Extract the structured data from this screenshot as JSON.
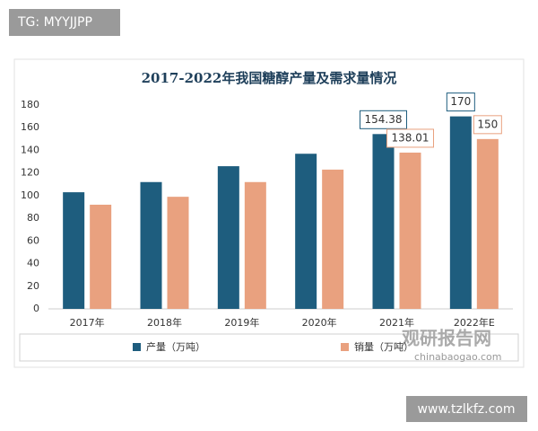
{
  "watermark_top": "TG: MYYJJPP",
  "watermark_bottom": "www.tzlkfz.com",
  "logo": {
    "name": "观研报告网",
    "site": "chinabaogao.com"
  },
  "chart_data": {
    "type": "bar",
    "title": "2017-2022年我国糖醇产量及需求量情况",
    "categories": [
      "2017年",
      "2018年",
      "2019年",
      "2020年",
      "2021年",
      "2022年E"
    ],
    "series": [
      {
        "name": "产量（万吨）",
        "color": "#1e5d7e",
        "values": [
          103,
          112,
          126,
          137,
          154.38,
          170
        ],
        "value_labels": [
          null,
          null,
          null,
          null,
          "154.38",
          "170"
        ]
      },
      {
        "name": "销量（万吨）",
        "color": "#e9a17f",
        "values": [
          92,
          99,
          112,
          123,
          138.01,
          150
        ],
        "value_labels": [
          null,
          null,
          null,
          null,
          "138.01",
          "150"
        ]
      }
    ],
    "ylim": [
      0,
      180
    ],
    "yticks": [
      0,
      20,
      40,
      60,
      80,
      100,
      120,
      140,
      160,
      180
    ],
    "grid": false
  }
}
